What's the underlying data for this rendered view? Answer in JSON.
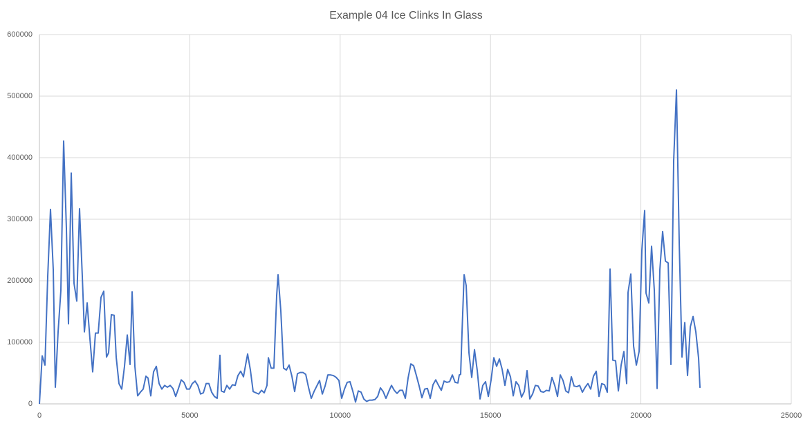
{
  "chart_data": {
    "type": "line",
    "title": "Example 04 Ice Clinks In Glass",
    "color": "#4472c4",
    "grid": true,
    "xlim": [
      0,
      25000
    ],
    "xticks": [
      0,
      5000,
      10000,
      15000,
      20000,
      25000
    ],
    "ylim": [
      0,
      600000
    ],
    "yticks": [
      0,
      100000,
      200000,
      300000,
      400000,
      500000,
      600000
    ],
    "x": [
      0,
      92,
      184,
      276,
      368,
      460,
      529,
      621,
      713,
      805,
      897,
      966,
      1058,
      1150,
      1242,
      1334,
      1426,
      1495,
      1587,
      1679,
      1771,
      1863,
      1955,
      2047,
      2139,
      2231,
      2300,
      2392,
      2484,
      2553,
      2645,
      2737,
      2829,
      2921,
      3013,
      3082,
      3174,
      3266,
      3358,
      3450,
      3542,
      3611,
      3703,
      3795,
      3887,
      3979,
      4071,
      4163,
      4255,
      4347,
      4439,
      4531,
      4623,
      4715,
      4807,
      4899,
      4991,
      5083,
      5175,
      5267,
      5359,
      5451,
      5543,
      5635,
      5727,
      5819,
      5911,
      6003,
      6049,
      6141,
      6233,
      6325,
      6417,
      6509,
      6601,
      6693,
      6785,
      6877,
      6923,
      7015,
      7107,
      7199,
      7291,
      7383,
      7475,
      7567,
      7613,
      7705,
      7797,
      7889,
      7935,
      8027,
      8119,
      8211,
      8303,
      8395,
      8487,
      8579,
      8671,
      8763,
      8855,
      8947,
      9039,
      9131,
      9223,
      9315,
      9407,
      9499,
      9591,
      9683,
      9775,
      9867,
      9959,
      10051,
      10143,
      10235,
      10327,
      10419,
      10511,
      10603,
      10695,
      10787,
      10879,
      10971,
      11063,
      11155,
      11247,
      11339,
      11431,
      11523,
      11615,
      11707,
      11799,
      11891,
      11983,
      12075,
      12167,
      12259,
      12351,
      12443,
      12535,
      12627,
      12719,
      12811,
      12903,
      12995,
      13087,
      13179,
      13271,
      13363,
      13455,
      13547,
      13639,
      13731,
      13823,
      13915,
      13961,
      14007,
      14053,
      14122,
      14191,
      14283,
      14375,
      14467,
      14559,
      14651,
      14743,
      14835,
      14927,
      15019,
      15111,
      15203,
      15295,
      15387,
      15479,
      15571,
      15663,
      15755,
      15847,
      15939,
      16031,
      16123,
      16215,
      16307,
      16399,
      16491,
      16583,
      16675,
      16767,
      16859,
      16951,
      17043,
      17135,
      17227,
      17319,
      17411,
      17503,
      17595,
      17687,
      17779,
      17871,
      17963,
      18055,
      18147,
      18239,
      18331,
      18423,
      18515,
      18607,
      18699,
      18791,
      18883,
      18975,
      19067,
      19159,
      19251,
      19343,
      19435,
      19527,
      19573,
      19665,
      19757,
      19849,
      19941,
      20033,
      20125,
      20171,
      20263,
      20355,
      20447,
      20539,
      20631,
      20723,
      20815,
      20907,
      20999,
      21091,
      21183,
      21275,
      21367,
      21459,
      21551,
      21643,
      21735,
      21827,
      21919,
      21965
    ],
    "values": [
      0,
      78000,
      63000,
      207000,
      316000,
      218000,
      27000,
      117000,
      184000,
      427000,
      285000,
      130000,
      375000,
      196000,
      167000,
      317000,
      207000,
      117000,
      164000,
      106000,
      52000,
      115000,
      115000,
      173000,
      183000,
      76000,
      83000,
      145000,
      144000,
      76000,
      33000,
      24000,
      61000,
      112000,
      64000,
      182000,
      61000,
      13000,
      19000,
      24000,
      45000,
      42000,
      13000,
      52000,
      61000,
      33000,
      24000,
      30000,
      27000,
      30000,
      25000,
      12000,
      25000,
      39000,
      35000,
      24000,
      24000,
      33000,
      37000,
      30000,
      16000,
      18000,
      33000,
      33000,
      19000,
      12000,
      9000,
      79000,
      21000,
      19000,
      30000,
      24000,
      31000,
      30000,
      46000,
      53000,
      44000,
      69000,
      81000,
      55000,
      20000,
      18000,
      16000,
      22000,
      18000,
      30000,
      75000,
      58000,
      58000,
      176000,
      210000,
      151000,
      58000,
      55000,
      63000,
      45000,
      20000,
      49000,
      51000,
      51000,
      48000,
      27000,
      9000,
      20000,
      29000,
      38000,
      16000,
      29000,
      47000,
      47000,
      46000,
      43000,
      38000,
      9000,
      24000,
      35000,
      36000,
      21000,
      3000,
      21000,
      19000,
      8000,
      4000,
      6000,
      6000,
      7000,
      12000,
      26000,
      20000,
      9000,
      20000,
      30000,
      22000,
      17000,
      22000,
      22000,
      9000,
      42000,
      65000,
      62000,
      46000,
      29000,
      10000,
      24000,
      25000,
      9000,
      31000,
      39000,
      30000,
      22000,
      37000,
      35000,
      36000,
      47000,
      35000,
      34000,
      47000,
      48000,
      117000,
      210000,
      192000,
      83000,
      43000,
      88000,
      54000,
      8000,
      30000,
      36000,
      12000,
      39000,
      75000,
      61000,
      73000,
      56000,
      30000,
      56000,
      44000,
      13000,
      36000,
      30000,
      11000,
      20000,
      54000,
      8000,
      16000,
      30000,
      29000,
      20000,
      19000,
      22000,
      21000,
      43000,
      30000,
      12000,
      47000,
      38000,
      21000,
      18000,
      44000,
      29000,
      28000,
      30000,
      19000,
      27000,
      33000,
      24000,
      45000,
      53000,
      12000,
      33000,
      31000,
      19000,
      219000,
      71000,
      70000,
      21000,
      63000,
      85000,
      33000,
      181000,
      211000,
      94000,
      63000,
      85000,
      250000,
      314000,
      180000,
      164000,
      256000,
      184000,
      25000,
      218000,
      280000,
      232000,
      229000,
      64000,
      396000,
      510000,
      261000,
      76000,
      132000,
      46000,
      125000,
      142000,
      117000,
      74000,
      26000
    ]
  }
}
